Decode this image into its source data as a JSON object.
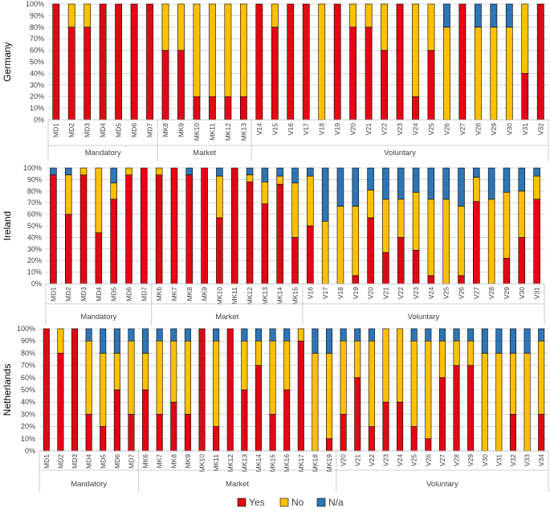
{
  "colors": {
    "yes": "#E30613",
    "no": "#FFC000",
    "na": "#2E75B6",
    "grid": "#BFBFBF",
    "text": "#404040"
  },
  "legend": [
    {
      "key": "yes",
      "label": "Yes"
    },
    {
      "key": "no",
      "label": "No"
    },
    {
      "key": "na",
      "label": "N/a"
    }
  ],
  "chart_data": [
    {
      "type": "bar",
      "stacked": true,
      "title": "Germany",
      "ylabel": "Germany",
      "ylim": [
        0,
        100
      ],
      "yticks": [
        "0%",
        "10%",
        "20%",
        "30%",
        "40%",
        "50%",
        "60%",
        "70%",
        "80%",
        "90%",
        "100%"
      ],
      "categories": [
        "MD1",
        "MD2",
        "MD3",
        "MD4",
        "MD5",
        "MD6",
        "MD7",
        "MK8",
        "MK9",
        "MK10",
        "MK11",
        "MK12",
        "MK13",
        "V14",
        "V15",
        "V16",
        "V17",
        "V18",
        "V19",
        "V20",
        "V21",
        "V22",
        "V23",
        "V24",
        "V25",
        "V26",
        "V27",
        "V28",
        "V29",
        "V30",
        "V31",
        "V32"
      ],
      "groups": [
        {
          "label": "Mandatory",
          "start": 0,
          "end": 6
        },
        {
          "label": "Market",
          "start": 7,
          "end": 12
        },
        {
          "label": "Voluntary",
          "start": 13,
          "end": 31
        }
      ],
      "series": [
        {
          "name": "Yes",
          "values": [
            100,
            80,
            80,
            100,
            100,
            100,
            100,
            60,
            60,
            20,
            20,
            20,
            20,
            100,
            80,
            100,
            100,
            0,
            100,
            80,
            80,
            60,
            100,
            20,
            60,
            0,
            100,
            0,
            0,
            0,
            40,
            100
          ]
        },
        {
          "name": "No",
          "values": [
            0,
            20,
            20,
            0,
            0,
            0,
            0,
            40,
            40,
            80,
            80,
            80,
            80,
            0,
            20,
            0,
            0,
            100,
            0,
            20,
            20,
            40,
            0,
            80,
            40,
            80,
            0,
            80,
            80,
            80,
            60,
            0
          ]
        },
        {
          "name": "N/a",
          "values": [
            0,
            0,
            0,
            0,
            0,
            0,
            0,
            0,
            0,
            0,
            0,
            0,
            0,
            0,
            0,
            0,
            0,
            0,
            0,
            0,
            0,
            0,
            0,
            0,
            0,
            20,
            0,
            20,
            20,
            20,
            0,
            0
          ]
        }
      ]
    },
    {
      "type": "bar",
      "stacked": true,
      "title": "Ireland",
      "ylabel": "Ireland",
      "ylim": [
        0,
        100
      ],
      "yticks": [
        "0%",
        "10%",
        "20%",
        "30%",
        "40%",
        "50%",
        "60%",
        "70%",
        "80%",
        "90%",
        "100%"
      ],
      "categories": [
        "MD1",
        "MD2",
        "MD3",
        "MD4",
        "MD5",
        "MD6",
        "MD7",
        "MK6",
        "MK7",
        "MK8",
        "MK9",
        "MK10",
        "MK11",
        "MK12",
        "MK13",
        "MK14",
        "MK15",
        "V16",
        "V17",
        "V18",
        "V19",
        "V20",
        "V21",
        "V22",
        "V23",
        "V24",
        "V25",
        "V26",
        "V27",
        "V28",
        "V29",
        "V30",
        "V31"
      ],
      "groups": [
        {
          "label": "Mandatory",
          "start": 0,
          "end": 6
        },
        {
          "label": "Market",
          "start": 7,
          "end": 16
        },
        {
          "label": "Voluntary",
          "start": 17,
          "end": 32
        }
      ],
      "series": [
        {
          "name": "Yes",
          "values": [
            94,
            60,
            94,
            44,
            73,
            94,
            100,
            94,
            100,
            94,
            100,
            57,
            100,
            88,
            69,
            86,
            40,
            50,
            0,
            0,
            7,
            57,
            27,
            40,
            29,
            7,
            0,
            7,
            71,
            0,
            22,
            40,
            73
          ]
        },
        {
          "name": "No",
          "values": [
            0,
            34,
            6,
            56,
            14,
            6,
            0,
            6,
            0,
            0,
            0,
            36,
            0,
            6,
            19,
            7,
            47,
            43,
            54,
            67,
            60,
            24,
            46,
            33,
            50,
            66,
            73,
            60,
            21,
            73,
            57,
            40,
            20
          ]
        },
        {
          "name": "N/a",
          "values": [
            6,
            6,
            0,
            0,
            13,
            0,
            0,
            0,
            0,
            6,
            0,
            7,
            0,
            6,
            12,
            7,
            13,
            7,
            46,
            33,
            33,
            19,
            27,
            27,
            21,
            27,
            27,
            33,
            8,
            27,
            21,
            20,
            7
          ]
        }
      ]
    },
    {
      "type": "bar",
      "stacked": true,
      "title": "Netherlands",
      "ylabel": "Netherlands",
      "ylim": [
        0,
        100
      ],
      "yticks": [
        "0%",
        "10%",
        "20%",
        "30%",
        "40%",
        "50%",
        "60%",
        "70%",
        "80%",
        "90%",
        "100%"
      ],
      "categories": [
        "MD1",
        "MD2",
        "MD3",
        "MD4",
        "MD5",
        "MD6",
        "MD7",
        "MK6",
        "MK7",
        "MK8",
        "MK9",
        "MK10",
        "MK11",
        "MK12",
        "MK13",
        "MK14",
        "MK15",
        "MK16",
        "MK17",
        "MK18",
        "MK19",
        "V20",
        "V21",
        "V22",
        "V23",
        "V24",
        "V25",
        "V26",
        "V27",
        "V28",
        "V29",
        "V30",
        "V31",
        "V32",
        "V33",
        "V34"
      ],
      "groups": [
        {
          "label": "Mandatory",
          "start": 0,
          "end": 6
        },
        {
          "label": "Market",
          "start": 7,
          "end": 20
        },
        {
          "label": "Voluntary",
          "start": 21,
          "end": 35
        }
      ],
      "series": [
        {
          "name": "Yes",
          "values": [
            100,
            80,
            100,
            30,
            20,
            50,
            30,
            50,
            30,
            40,
            30,
            100,
            20,
            100,
            50,
            70,
            30,
            50,
            90,
            0,
            10,
            30,
            60,
            20,
            40,
            40,
            20,
            10,
            60,
            70,
            70,
            0,
            0,
            30,
            0,
            30
          ]
        },
        {
          "name": "No",
          "values": [
            0,
            20,
            0,
            60,
            60,
            30,
            60,
            30,
            60,
            50,
            60,
            0,
            70,
            0,
            40,
            20,
            60,
            40,
            10,
            80,
            70,
            60,
            30,
            70,
            60,
            60,
            70,
            80,
            30,
            20,
            20,
            80,
            80,
            50,
            80,
            60
          ]
        },
        {
          "name": "N/a",
          "values": [
            0,
            0,
            0,
            10,
            20,
            20,
            10,
            20,
            10,
            10,
            10,
            0,
            10,
            0,
            10,
            10,
            10,
            10,
            0,
            20,
            20,
            10,
            10,
            10,
            0,
            0,
            10,
            10,
            10,
            10,
            10,
            20,
            20,
            20,
            20,
            10
          ]
        }
      ]
    }
  ]
}
